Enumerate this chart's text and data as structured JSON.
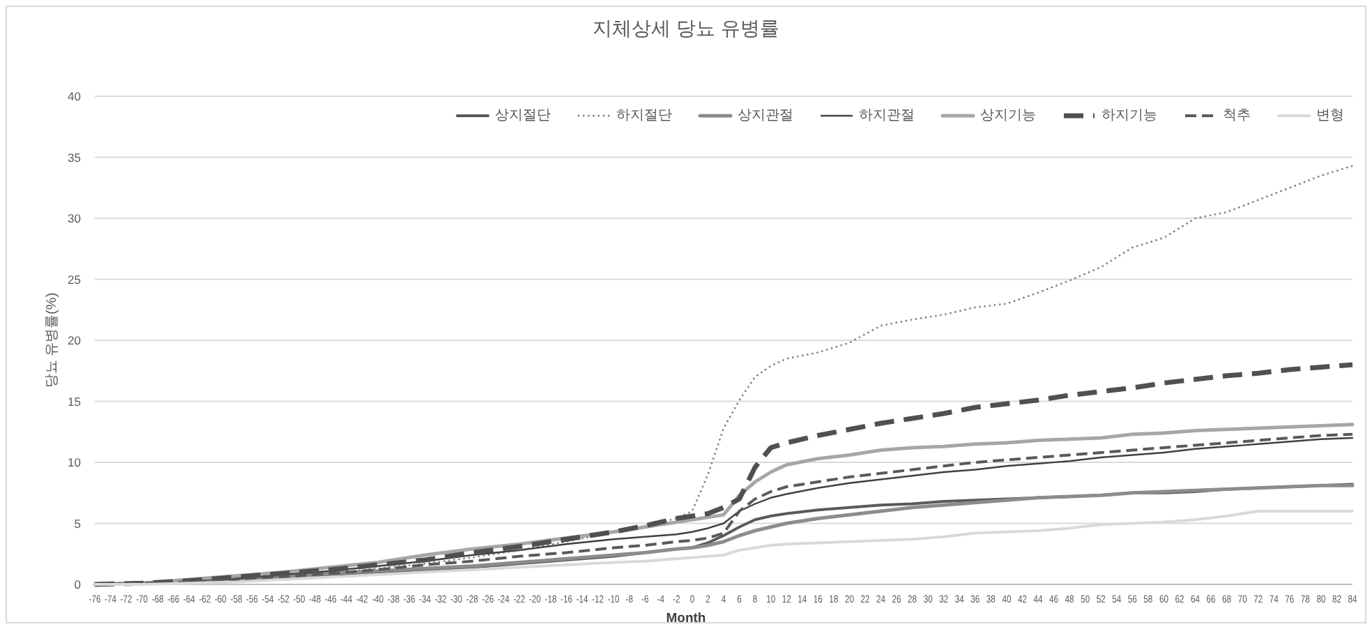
{
  "chart_data": {
    "type": "line",
    "title": "지체상세 당뇨 유병률",
    "xlabel": "Month",
    "ylabel": "당뇨 유병률(%)",
    "x": [
      -76,
      -70,
      -64,
      -58,
      -52,
      -46,
      -40,
      -34,
      -28,
      -22,
      -16,
      -10,
      -6,
      -2,
      0,
      2,
      4,
      6,
      8,
      10,
      12,
      16,
      20,
      24,
      28,
      32,
      36,
      40,
      44,
      48,
      52,
      56,
      60,
      64,
      68,
      72,
      76,
      80,
      84
    ],
    "series": [
      {
        "name": "상지절단",
        "color": "#595959",
        "line_style": "solid",
        "values": [
          0,
          0.1,
          0.2,
          0.4,
          0.6,
          0.8,
          1.0,
          1.2,
          1.4,
          1.7,
          2.0,
          2.3,
          2.6,
          2.9,
          3.0,
          3.4,
          4.0,
          4.7,
          5.3,
          5.6,
          5.8,
          6.1,
          6.3,
          6.5,
          6.6,
          6.8,
          6.9,
          7.0,
          7.1,
          7.2,
          7.3,
          7.5,
          7.5,
          7.6,
          7.8,
          7.9,
          8.0,
          8.1,
          8.2
        ]
      },
      {
        "name": "하지절단",
        "color": "#7f7f7f",
        "line_style": "dotted",
        "values": [
          0,
          0,
          0.1,
          0.3,
          0.6,
          0.9,
          1.3,
          1.7,
          2.2,
          2.8,
          3.5,
          4.3,
          4.8,
          5.4,
          6.0,
          9.0,
          12.8,
          15.1,
          17.0,
          17.9,
          18.5,
          19.0,
          19.8,
          21.2,
          21.7,
          22.1,
          22.7,
          23.0,
          23.9,
          24.9,
          26.0,
          27.6,
          28.4,
          30.0,
          30.5,
          31.5,
          32.5,
          33.5,
          34.3
        ]
      },
      {
        "name": "상지관절",
        "color": "#8c8c8c",
        "line_style": "solid",
        "values": [
          0,
          0.1,
          0.2,
          0.4,
          0.6,
          0.9,
          1.1,
          1.3,
          1.5,
          1.8,
          2.1,
          2.4,
          2.6,
          2.9,
          3.0,
          3.2,
          3.5,
          4.0,
          4.4,
          4.7,
          5.0,
          5.4,
          5.7,
          6.0,
          6.3,
          6.5,
          6.7,
          6.9,
          7.1,
          7.2,
          7.3,
          7.5,
          7.6,
          7.7,
          7.8,
          7.9,
          8.0,
          8.1,
          8.1
        ]
      },
      {
        "name": "하지관절",
        "color": "#404040",
        "line_style": "solid",
        "values": [
          0,
          0.1,
          0.3,
          0.5,
          0.8,
          1.1,
          1.5,
          1.9,
          2.4,
          2.8,
          3.3,
          3.7,
          3.9,
          4.1,
          4.3,
          4.6,
          5.0,
          6.0,
          6.6,
          7.1,
          7.4,
          7.9,
          8.3,
          8.6,
          8.9,
          9.2,
          9.4,
          9.7,
          9.9,
          10.1,
          10.4,
          10.6,
          10.8,
          11.1,
          11.3,
          11.5,
          11.7,
          11.9,
          12.0
        ]
      },
      {
        "name": "상지기능",
        "color": "#a6a6a6",
        "line_style": "solid",
        "values": [
          0,
          0.1,
          0.4,
          0.7,
          1.0,
          1.4,
          1.8,
          2.4,
          2.9,
          3.3,
          3.8,
          4.3,
          4.7,
          5.1,
          5.3,
          5.5,
          5.7,
          7.3,
          8.4,
          9.2,
          9.8,
          10.3,
          10.6,
          11.0,
          11.2,
          11.3,
          11.5,
          11.6,
          11.8,
          11.9,
          12.0,
          12.3,
          12.4,
          12.6,
          12.7,
          12.8,
          12.9,
          13.0,
          13.1
        ]
      },
      {
        "name": "하지기능",
        "color": "#505050",
        "line_style": "dashed",
        "values": [
          0,
          0.1,
          0.3,
          0.6,
          0.9,
          1.2,
          1.6,
          2.0,
          2.6,
          3.1,
          3.7,
          4.3,
          4.8,
          5.4,
          5.6,
          5.8,
          6.3,
          7.0,
          9.6,
          11.2,
          11.6,
          12.2,
          12.7,
          13.2,
          13.6,
          14.0,
          14.5,
          14.8,
          15.1,
          15.5,
          15.8,
          16.1,
          16.5,
          16.8,
          17.1,
          17.3,
          17.6,
          17.8,
          18.0
        ]
      },
      {
        "name": "척추",
        "color": "#595959",
        "line_style": "dashed",
        "values": [
          0,
          0.1,
          0.2,
          0.4,
          0.6,
          0.9,
          1.2,
          1.6,
          1.9,
          2.3,
          2.6,
          3.0,
          3.2,
          3.5,
          3.6,
          3.8,
          4.2,
          6.0,
          7.0,
          7.6,
          8.0,
          8.4,
          8.8,
          9.1,
          9.4,
          9.7,
          10.0,
          10.2,
          10.4,
          10.6,
          10.8,
          11.0,
          11.2,
          11.4,
          11.6,
          11.8,
          12.0,
          12.2,
          12.3
        ]
      },
      {
        "name": "변형",
        "color": "#d9d9d9",
        "line_style": "solid",
        "values": [
          0,
          0,
          0.1,
          0.2,
          0.4,
          0.6,
          0.8,
          1.0,
          1.2,
          1.4,
          1.6,
          1.8,
          1.9,
          2.1,
          2.2,
          2.3,
          2.4,
          2.8,
          3.0,
          3.2,
          3.3,
          3.4,
          3.5,
          3.6,
          3.7,
          3.9,
          4.2,
          4.3,
          4.4,
          4.6,
          4.9,
          5.0,
          5.1,
          5.3,
          5.6,
          6.0,
          6.0,
          6.0,
          6.0
        ]
      }
    ],
    "xlim": [
      -76,
      84
    ],
    "xticks": [
      -76,
      -74,
      -72,
      -70,
      -68,
      -66,
      -64,
      -62,
      -60,
      -58,
      -56,
      -54,
      -52,
      -50,
      -48,
      -46,
      -44,
      -42,
      -40,
      -38,
      -36,
      -34,
      -32,
      -30,
      -28,
      -26,
      -24,
      -22,
      -20,
      -18,
      -16,
      -14,
      -12,
      -10,
      -8,
      -6,
      -4,
      -2,
      0,
      2,
      4,
      6,
      8,
      10,
      12,
      14,
      16,
      18,
      20,
      22,
      24,
      26,
      28,
      30,
      32,
      34,
      36,
      38,
      40,
      42,
      44,
      46,
      48,
      50,
      52,
      54,
      56,
      58,
      60,
      62,
      64,
      66,
      68,
      70,
      72,
      74,
      76,
      78,
      80,
      82,
      84
    ],
    "ylim": [
      0,
      40
    ],
    "yticks": [
      0,
      5,
      10,
      15,
      20,
      25,
      30,
      35,
      40
    ],
    "grid": "y",
    "legend": "top right"
  }
}
